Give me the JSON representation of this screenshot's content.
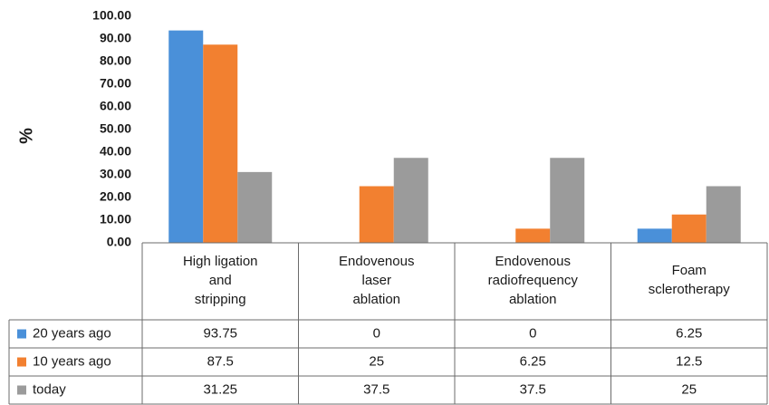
{
  "chart_data": {
    "type": "bar",
    "title": "",
    "xlabel": "",
    "ylabel": "%",
    "ylim": [
      0,
      100
    ],
    "yticks": [
      "0.00",
      "10.00",
      "20.00",
      "30.00",
      "40.00",
      "50.00",
      "60.00",
      "70.00",
      "80.00",
      "90.00",
      "100.00"
    ],
    "grid": false,
    "legend": "data-table-left",
    "categories": [
      [
        "High ligation",
        "and",
        "stripping"
      ],
      [
        "Endovenous",
        "laser",
        "ablation"
      ],
      [
        "Endovenous",
        "radiofrequency",
        "ablation"
      ],
      [
        "Foam",
        "sclerotherapy"
      ]
    ],
    "series": [
      {
        "name": "20 years ago",
        "color": "#4a90d9",
        "values": [
          93.75,
          0,
          0,
          6.25
        ],
        "labels": [
          "93.75",
          "0",
          "0",
          "6.25"
        ]
      },
      {
        "name": "10 years ago",
        "color": "#f28030",
        "values": [
          87.5,
          25,
          6.25,
          12.5
        ],
        "labels": [
          "87.5",
          "25",
          "6.25",
          "12.5"
        ]
      },
      {
        "name": "today",
        "color": "#9b9b9b",
        "values": [
          31.25,
          37.5,
          37.5,
          25
        ],
        "labels": [
          "31.25",
          "37.5",
          "37.5",
          "25"
        ]
      }
    ]
  }
}
